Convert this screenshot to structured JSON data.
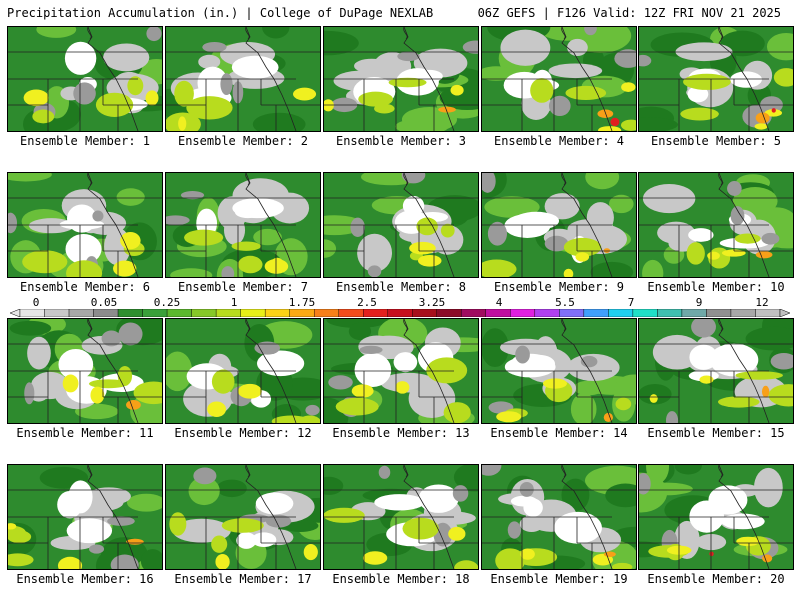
{
  "header": {
    "left_title": "Precipitation Accumulation (in.) | College of DuPage NEXLAB",
    "right_title": "06Z GEFS | F126 Valid: 12Z FRI NOV 21 2025"
  },
  "colorbar": {
    "labels": [
      "0",
      "0.05",
      "0.25",
      "1",
      "1.75",
      "2.5",
      "3.25",
      "4",
      "5.5",
      "7",
      "9",
      "12"
    ],
    "colors": [
      "#e6e6e6",
      "#c8c8c8",
      "#a8a8a8",
      "#8c8c8c",
      "#2f8f2f",
      "#3aa03a",
      "#5cb82e",
      "#86c828",
      "#b8dc1e",
      "#e8ef18",
      "#fcd216",
      "#fbaa14",
      "#f8801a",
      "#f24c1c",
      "#e4201e",
      "#c8101e",
      "#a8101c",
      "#8c0c28",
      "#a00c60",
      "#c010a0",
      "#e020e0",
      "#b040f0",
      "#8070f8",
      "#40a0fc",
      "#20d0f0",
      "#20e0c8",
      "#40c0b0",
      "#70a8a8",
      "#909090",
      "#a8a8a8",
      "#c0c0c0"
    ]
  },
  "panels": [
    {
      "label": "Ensemble Member: 1"
    },
    {
      "label": "Ensemble Member: 2"
    },
    {
      "label": "Ensemble Member: 3"
    },
    {
      "label": "Ensemble Member: 4"
    },
    {
      "label": "Ensemble Member: 5"
    },
    {
      "label": "Ensemble Member: 6"
    },
    {
      "label": "Ensemble Member: 7"
    },
    {
      "label": "Ensemble Member: 8"
    },
    {
      "label": "Ensemble Member: 9"
    },
    {
      "label": "Ensemble Member: 10"
    },
    {
      "label": "Ensemble Member: 11"
    },
    {
      "label": "Ensemble Member: 12"
    },
    {
      "label": "Ensemble Member: 13"
    },
    {
      "label": "Ensemble Member: 14"
    },
    {
      "label": "Ensemble Member: 15"
    },
    {
      "label": "Ensemble Member: 16"
    },
    {
      "label": "Ensemble Member: 17"
    },
    {
      "label": "Ensemble Member: 18"
    },
    {
      "label": "Ensemble Member: 19"
    },
    {
      "label": "Ensemble Member: 20"
    }
  ],
  "fill_colors": {
    "background_green": "#2e8b2e",
    "dark_green": "#1f7a1f",
    "light_green": "#6abf3a",
    "yellow_green": "#b8dc1e",
    "yellow": "#f0f020",
    "orange": "#f8a018",
    "red": "#e02020",
    "magenta": "#c010a0",
    "gray": "#9a9a9a",
    "light_gray": "#c8c8c8",
    "white": "#ffffff",
    "border": "#000000"
  }
}
